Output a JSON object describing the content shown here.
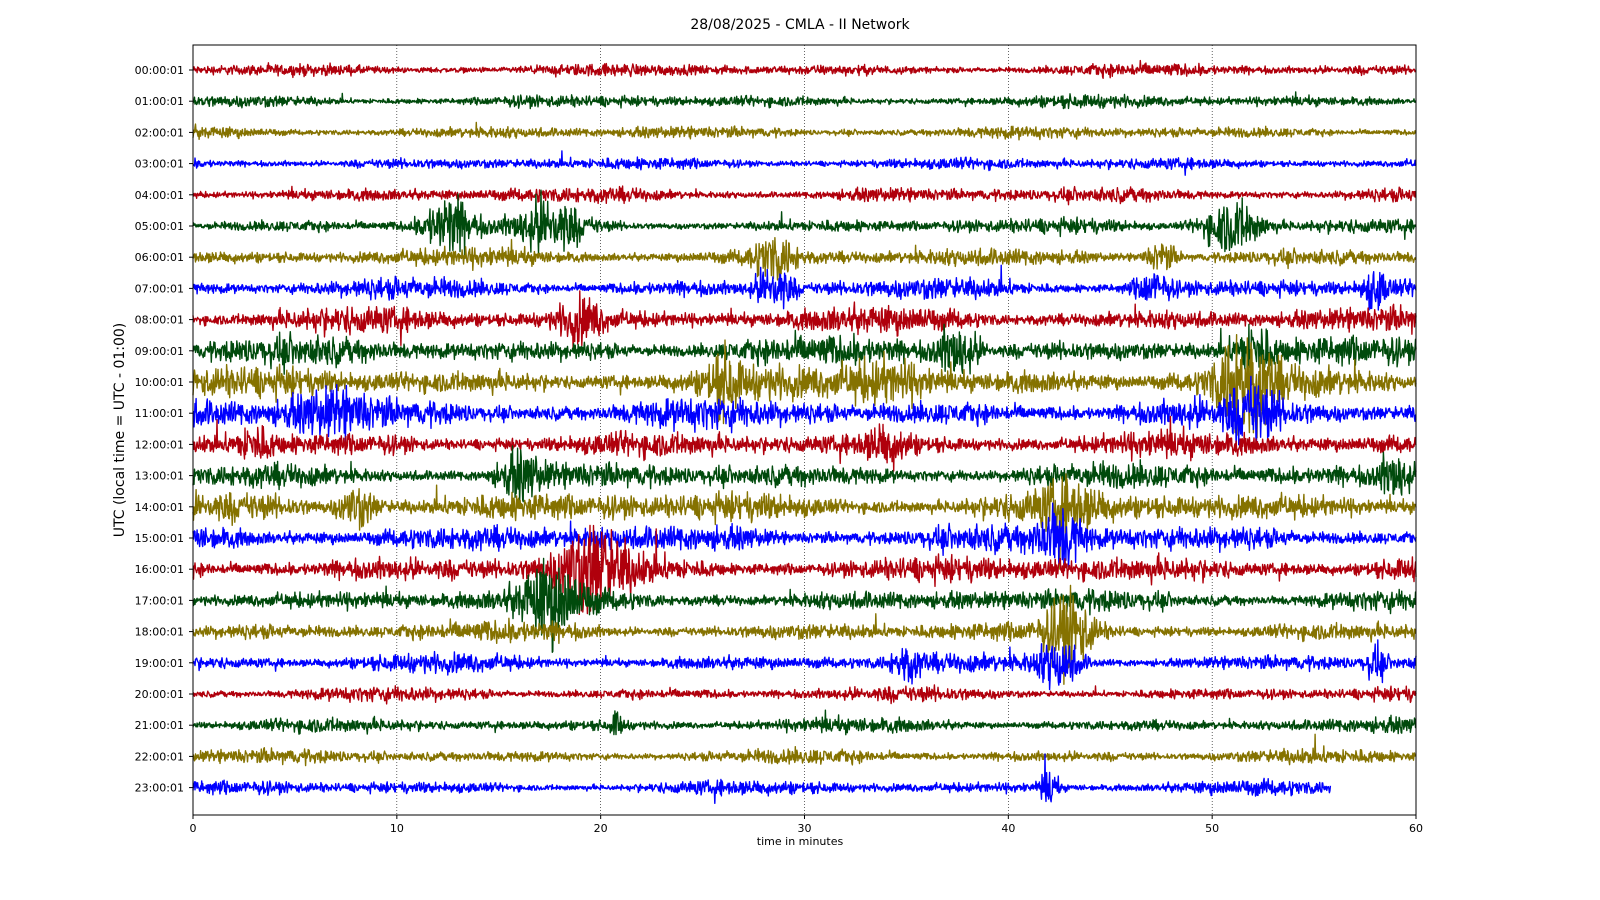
{
  "chart_data": {
    "type": "line",
    "chart_subtype": "helicorder",
    "title": "28/08/2025 - CMLA - II Network",
    "xlabel": "time in minutes",
    "ylabel": "UTC (local time = UTC - 01:00)",
    "xlim": [
      0,
      60
    ],
    "x_ticks": [
      0,
      10,
      20,
      30,
      40,
      50,
      60
    ],
    "grid": "vertical dotted lines at x ticks",
    "legend": "none",
    "trace_colors": [
      "#b0000c",
      "#004a0c",
      "#857200",
      "#0000ff"
    ],
    "rows": [
      {
        "label": "00:00:01",
        "end_minute": 60,
        "amplitude": 0.25
      },
      {
        "label": "01:00:01",
        "end_minute": 60,
        "amplitude": 0.25
      },
      {
        "label": "02:00:01",
        "end_minute": 60,
        "amplitude": 0.25
      },
      {
        "label": "03:00:01",
        "end_minute": 60,
        "amplitude": 0.25
      },
      {
        "label": "04:00:01",
        "end_minute": 60,
        "amplitude": 0.3
      },
      {
        "label": "05:00:01",
        "end_minute": 60,
        "amplitude": 0.3,
        "events": [
          {
            "t": 12.5,
            "w": 1.6,
            "a": 1.2
          },
          {
            "t": 17.5,
            "w": 2.0,
            "a": 1.1
          },
          {
            "t": 51,
            "w": 2.0,
            "a": 1.2
          }
        ]
      },
      {
        "label": "06:00:01",
        "end_minute": 60,
        "amplitude": 0.35,
        "events": [
          {
            "t": 28.5,
            "w": 1.5,
            "a": 0.9
          },
          {
            "t": 47.5,
            "w": 1.0,
            "a": 0.6
          }
        ]
      },
      {
        "label": "07:00:01",
        "end_minute": 60,
        "amplitude": 0.4,
        "events": [
          {
            "t": 28.5,
            "w": 1.2,
            "a": 1.0
          },
          {
            "t": 47,
            "w": 1.2,
            "a": 0.7
          },
          {
            "t": 58,
            "w": 0.8,
            "a": 0.8
          }
        ]
      },
      {
        "label": "08:00:01",
        "end_minute": 60,
        "amplitude": 0.5,
        "events": [
          {
            "t": 19,
            "w": 1.5,
            "a": 0.8
          }
        ]
      },
      {
        "label": "09:00:01",
        "end_minute": 60,
        "amplitude": 0.55,
        "events": [
          {
            "t": 37.5,
            "w": 1.5,
            "a": 1.0
          },
          {
            "t": 52,
            "w": 1.2,
            "a": 1.0
          }
        ]
      },
      {
        "label": "10:00:01",
        "end_minute": 60,
        "amplitude": 0.6,
        "events": [
          {
            "t": 26,
            "w": 1.0,
            "a": 1.0
          },
          {
            "t": 34,
            "w": 3.0,
            "a": 0.8
          },
          {
            "t": 51.5,
            "w": 1.8,
            "a": 2.1
          }
        ]
      },
      {
        "label": "11:00:01",
        "end_minute": 60,
        "amplitude": 0.6,
        "events": [
          {
            "t": 7,
            "w": 3.0,
            "a": 0.7
          },
          {
            "t": 52,
            "w": 1.5,
            "a": 0.9
          }
        ]
      },
      {
        "label": "12:00:01",
        "end_minute": 60,
        "amplitude": 0.5,
        "events": [
          {
            "t": 3,
            "w": 1.2,
            "a": 0.6
          },
          {
            "t": 34,
            "w": 1.5,
            "a": 0.7
          }
        ]
      },
      {
        "label": "13:00:01",
        "end_minute": 60,
        "amplitude": 0.5,
        "events": [
          {
            "t": 16,
            "w": 1.5,
            "a": 0.7
          },
          {
            "t": 59,
            "w": 1.2,
            "a": 0.8
          }
        ]
      },
      {
        "label": "14:00:01",
        "end_minute": 60,
        "amplitude": 0.6,
        "events": [
          {
            "t": 8,
            "w": 1.2,
            "a": 0.8
          },
          {
            "t": 43,
            "w": 2.0,
            "a": 0.7
          }
        ]
      },
      {
        "label": "15:00:01",
        "end_minute": 60,
        "amplitude": 0.55,
        "events": [
          {
            "t": 42.5,
            "w": 1.5,
            "a": 1.2
          }
        ]
      },
      {
        "label": "16:00:01",
        "end_minute": 60,
        "amplitude": 0.55,
        "events": [
          {
            "t": 19.5,
            "w": 2.5,
            "a": 1.6
          }
        ]
      },
      {
        "label": "17:00:01",
        "end_minute": 60,
        "amplitude": 0.45,
        "events": [
          {
            "t": 17.5,
            "w": 2.0,
            "a": 1.4
          }
        ]
      },
      {
        "label": "18:00:01",
        "end_minute": 60,
        "amplitude": 0.4,
        "events": [
          {
            "t": 43,
            "w": 1.5,
            "a": 1.5
          }
        ]
      },
      {
        "label": "19:00:01",
        "end_minute": 60,
        "amplitude": 0.35,
        "events": [
          {
            "t": 42.5,
            "w": 1.5,
            "a": 1.0
          },
          {
            "t": 35,
            "w": 1.0,
            "a": 0.6
          },
          {
            "t": 58,
            "w": 0.6,
            "a": 0.6
          }
        ]
      },
      {
        "label": "20:00:01",
        "end_minute": 60,
        "amplitude": 0.28
      },
      {
        "label": "21:00:01",
        "end_minute": 60,
        "amplitude": 0.28,
        "events": [
          {
            "t": 20.8,
            "w": 0.4,
            "a": 0.5
          }
        ]
      },
      {
        "label": "22:00:01",
        "end_minute": 60,
        "amplitude": 0.28
      },
      {
        "label": "23:00:01",
        "end_minute": 55.8,
        "amplitude": 0.28,
        "events": [
          {
            "t": 42,
            "w": 0.6,
            "a": 0.7
          }
        ]
      }
    ]
  }
}
